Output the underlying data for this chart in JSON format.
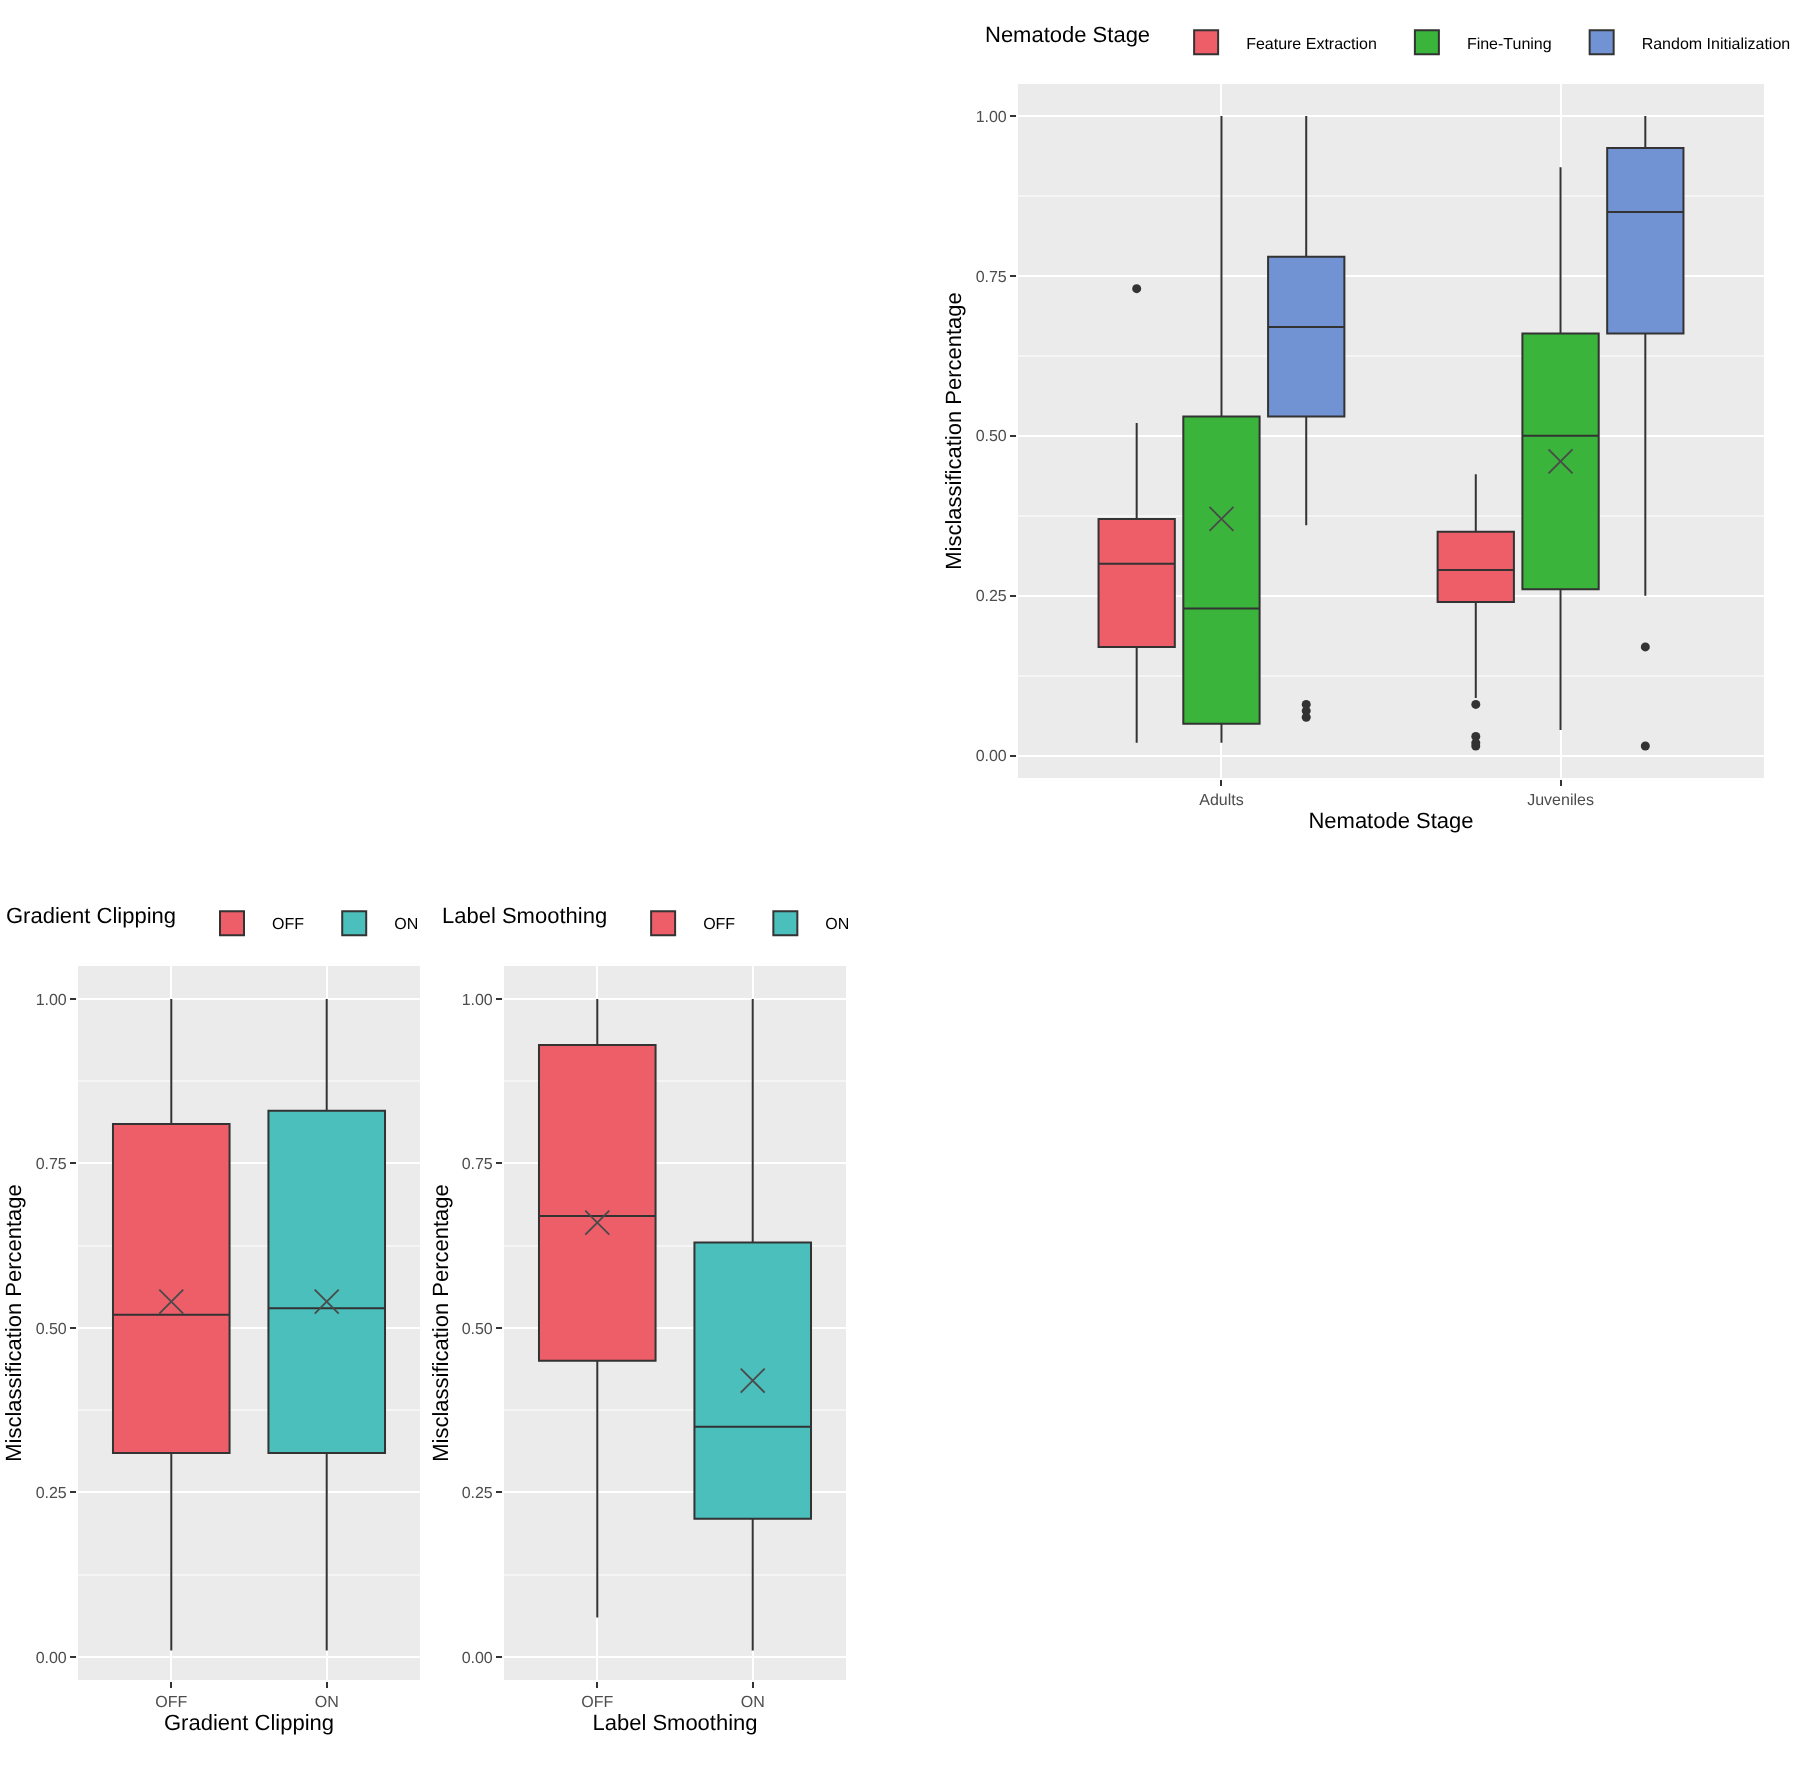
{
  "chart_data": [
    {
      "type": "box",
      "categories": [
        "Adults",
        "Juveniles"
      ],
      "xlabel": "Nematode Stage",
      "ylabel": "Misclassification Percentage",
      "legend_title": "Nematode Stage",
      "legend": "top",
      "grid": true,
      "ylim": [
        -0.035,
        1.05
      ],
      "yticks": [
        {
          "value": 0,
          "label": "0.00"
        },
        {
          "value": 0.125,
          "label": null
        },
        {
          "value": 0.25,
          "label": "0.25"
        },
        {
          "value": 0.375,
          "label": null
        },
        {
          "value": 0.5,
          "label": "0.50"
        },
        {
          "value": 0.625,
          "label": null
        },
        {
          "value": 0.75,
          "label": "0.75"
        },
        {
          "value": 0.875,
          "label": null
        },
        {
          "value": 1,
          "label": "1.00"
        }
      ],
      "series": [
        {
          "name": "Feature Extraction",
          "color": "#ed5e68",
          "boxes": [
            {
              "low": 0.02,
              "q1": 0.17,
              "median": 0.3,
              "q3": 0.37,
              "high": 0.52,
              "outliers": [
                0.73
              ]
            },
            {
              "low": 0.09,
              "q1": 0.24,
              "median": 0.29,
              "q3": 0.35,
              "high": 0.44,
              "outliers": [
                0.08,
                0.03,
                0.02,
                0.015
              ]
            }
          ]
        },
        {
          "name": "Fine-Tuning",
          "color": "#3ab43a",
          "boxes": [
            {
              "low": 0.02,
              "q1": 0.05,
              "median": 0.23,
              "q3": 0.53,
              "high": 1,
              "mean": 0.37
            },
            {
              "low": 0.04,
              "q1": 0.26,
              "median": 0.5,
              "q3": 0.66,
              "high": 0.92,
              "mean": 0.46
            }
          ]
        },
        {
          "name": "Random Initialization",
          "color": "#7293d3",
          "boxes": [
            {
              "low": 0.36,
              "q1": 0.53,
              "median": 0.67,
              "q3": 0.78,
              "high": 1,
              "outliers": [
                0.08,
                0.07,
                0.06
              ]
            },
            {
              "low": 0.25,
              "q1": 0.66,
              "median": 0.85,
              "q3": 0.95,
              "high": 1,
              "outliers": [
                0.17,
                0.015
              ]
            }
          ]
        }
      ]
    },
    {
      "type": "box",
      "categories": [
        "OFF",
        "ON"
      ],
      "xlabel": "Gradient Clipping",
      "ylabel": "Misclassification Percentage",
      "legend_title": "Gradient Clipping",
      "legend": "top",
      "grid": true,
      "ylim": [
        -0.035,
        1.05
      ],
      "yticks": [
        {
          "value": 0,
          "label": "0.00"
        },
        {
          "value": 0.125,
          "label": null
        },
        {
          "value": 0.25,
          "label": "0.25"
        },
        {
          "value": 0.375,
          "label": null
        },
        {
          "value": 0.5,
          "label": "0.50"
        },
        {
          "value": 0.625,
          "label": null
        },
        {
          "value": 0.75,
          "label": "0.75"
        },
        {
          "value": 0.875,
          "label": null
        },
        {
          "value": 1,
          "label": "1.00"
        }
      ],
      "series": [
        {
          "name": "OFF",
          "color": "#ed5e68",
          "boxes": [
            {
              "low": 0.01,
              "q1": 0.31,
              "median": 0.52,
              "q3": 0.81,
              "high": 1,
              "mean": 0.54
            },
            null
          ]
        },
        {
          "name": "ON",
          "color": "#4bbfbc",
          "boxes": [
            null,
            {
              "low": 0.01,
              "q1": 0.31,
              "median": 0.53,
              "q3": 0.83,
              "high": 1,
              "mean": 0.54
            }
          ]
        }
      ]
    },
    {
      "type": "box",
      "categories": [
        "OFF",
        "ON"
      ],
      "xlabel": "Label Smoothing",
      "ylabel": "Misclassification Percentage",
      "legend_title": "Label Smoothing",
      "legend": "top",
      "grid": true,
      "ylim": [
        -0.035,
        1.05
      ],
      "yticks": [
        {
          "value": 0,
          "label": "0.00"
        },
        {
          "value": 0.125,
          "label": null
        },
        {
          "value": 0.25,
          "label": "0.25"
        },
        {
          "value": 0.375,
          "label": null
        },
        {
          "value": 0.5,
          "label": "0.50"
        },
        {
          "value": 0.625,
          "label": null
        },
        {
          "value": 0.75,
          "label": "0.75"
        },
        {
          "value": 0.875,
          "label": null
        },
        {
          "value": 1,
          "label": "1.00"
        }
      ],
      "series": [
        {
          "name": "OFF",
          "color": "#ed5e68",
          "boxes": [
            {
              "low": 0.06,
              "q1": 0.45,
              "median": 0.67,
              "q3": 0.93,
              "high": 1,
              "mean": 0.66
            },
            null
          ]
        },
        {
          "name": "ON",
          "color": "#4bbfbc",
          "boxes": [
            null,
            {
              "low": 0.01,
              "q1": 0.21,
              "median": 0.35,
              "q3": 0.63,
              "high": 1,
              "mean": 0.42
            }
          ]
        }
      ]
    }
  ]
}
